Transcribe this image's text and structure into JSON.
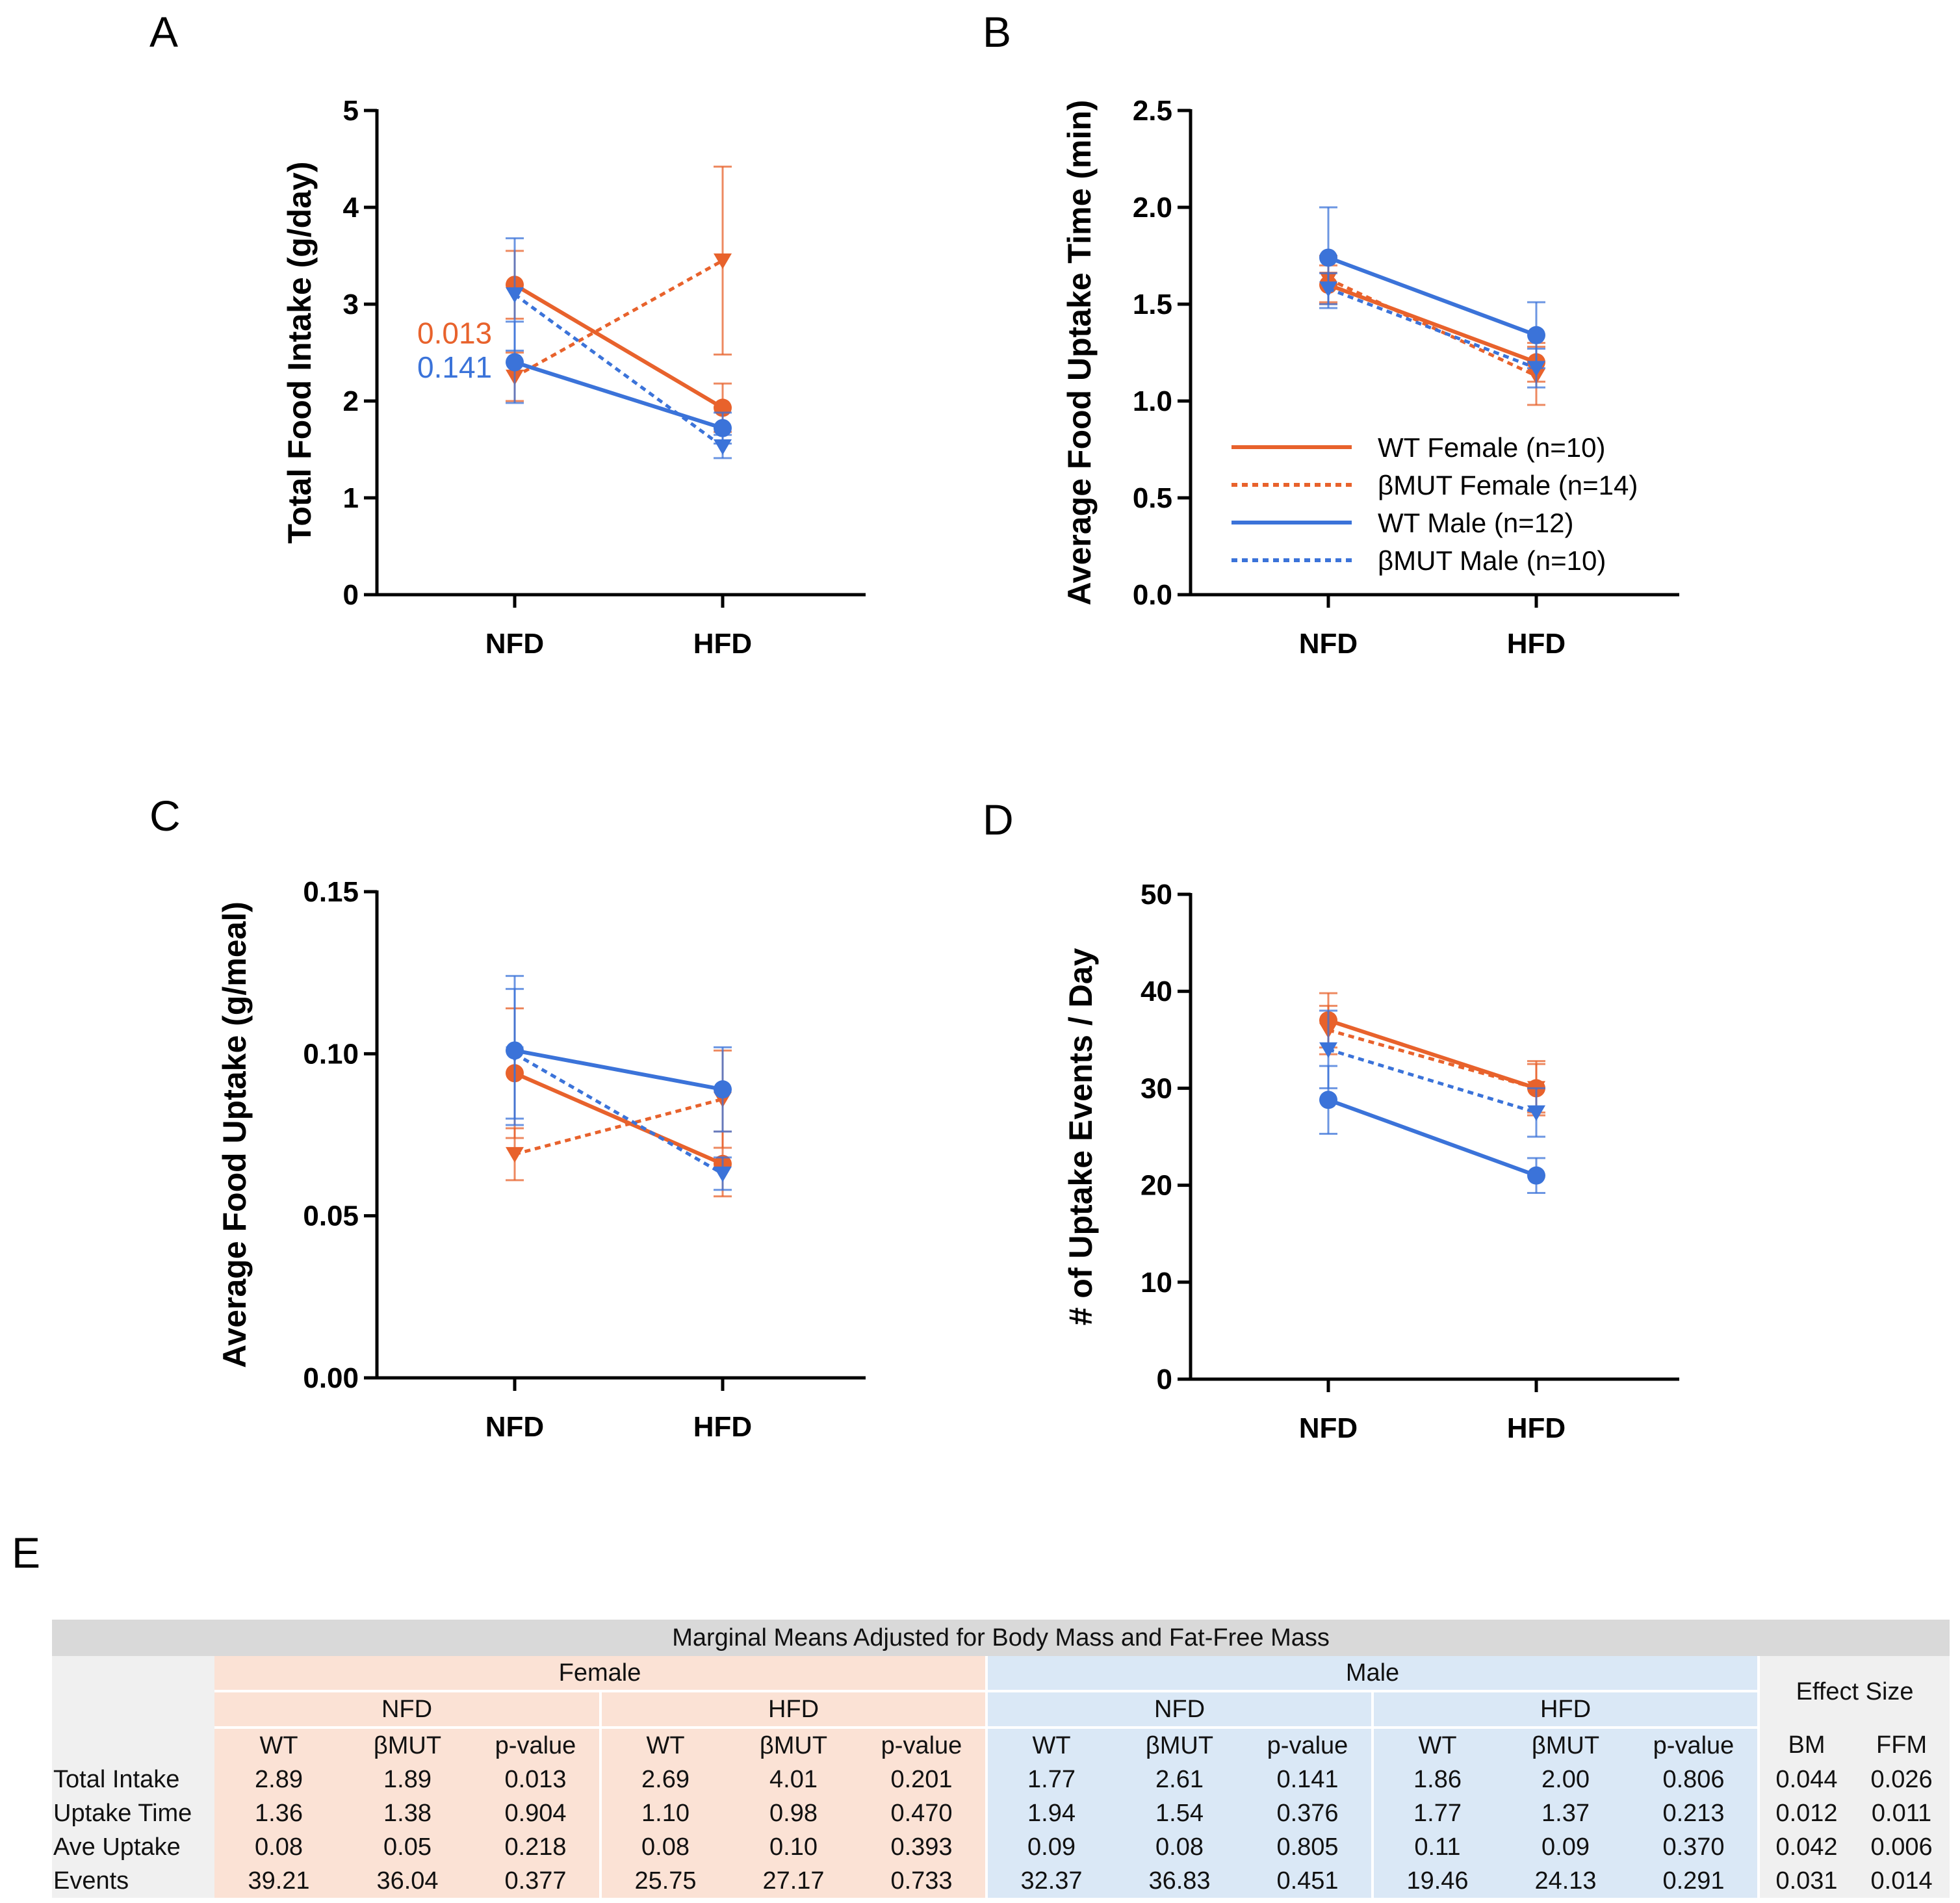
{
  "colors": {
    "female": "#E8622C",
    "male": "#3B73D9"
  },
  "legend": {
    "wt_female": "WT Female  (n=10)",
    "bmut_female": "βMUT  Female  (n=14)",
    "wt_male": "WT Male  (n=12)",
    "bmut_male": "βMUT  Male  (n=10)"
  },
  "chart_data": [
    {
      "panel": "A",
      "type": "line",
      "categories": [
        "NFD",
        "HFD"
      ],
      "ylabel": "Total Food Intake (g/day)",
      "ylim": [
        0,
        5
      ],
      "yticks": [
        "0",
        "1",
        "2",
        "3",
        "4",
        "5"
      ],
      "annotations": [
        {
          "text": "0.013",
          "color": "female"
        },
        {
          "text": "0.141",
          "color": "male"
        }
      ],
      "series": [
        {
          "name": "WT Female",
          "values": [
            3.2,
            1.93
          ],
          "err": [
            0.35,
            0.25
          ]
        },
        {
          "name": "βMUT Female",
          "values": [
            2.25,
            3.45
          ],
          "err": [
            0.25,
            0.97
          ]
        },
        {
          "name": "WT Male",
          "values": [
            2.4,
            1.72
          ],
          "err": [
            0.42,
            0.16
          ]
        },
        {
          "name": "βMUT Male",
          "values": [
            3.1,
            1.53
          ],
          "err": [
            0.58,
            0.12
          ]
        }
      ]
    },
    {
      "panel": "B",
      "type": "line",
      "categories": [
        "NFD",
        "HFD"
      ],
      "ylabel": "Average Food Uptake Time (min)",
      "ylim": [
        0,
        2.5
      ],
      "yticks": [
        "0.0",
        "0.5",
        "1.0",
        "1.5",
        "2.0",
        "2.5"
      ],
      "series": [
        {
          "name": "WT Female",
          "values": [
            1.6,
            1.2
          ],
          "err": [
            0.1,
            0.1
          ]
        },
        {
          "name": "βMUT Female",
          "values": [
            1.63,
            1.13
          ],
          "err": [
            0.12,
            0.15
          ]
        },
        {
          "name": "WT Male",
          "values": [
            1.74,
            1.34
          ],
          "err": [
            0.26,
            0.17
          ]
        },
        {
          "name": "βMUT Male",
          "values": [
            1.58,
            1.17
          ],
          "err": [
            0.08,
            0.1
          ]
        }
      ]
    },
    {
      "panel": "C",
      "type": "line",
      "categories": [
        "NFD",
        "HFD"
      ],
      "ylabel": "Average Food Uptake (g/meal)",
      "ylim": [
        0,
        0.15
      ],
      "yticks": [
        "0.00",
        "0.05",
        "0.10",
        "0.15"
      ],
      "series": [
        {
          "name": "WT Female",
          "values": [
            0.094,
            0.066
          ],
          "err": [
            0.02,
            0.01
          ]
        },
        {
          "name": "βMUT Female",
          "values": [
            0.069,
            0.086
          ],
          "err": [
            0.008,
            0.015
          ]
        },
        {
          "name": "WT Male",
          "values": [
            0.101,
            0.089
          ],
          "err": [
            0.023,
            0.013
          ]
        },
        {
          "name": "βMUT Male",
          "values": [
            0.1,
            0.063
          ],
          "err": [
            0.02,
            0.005
          ]
        }
      ]
    },
    {
      "panel": "D",
      "type": "line",
      "categories": [
        "NFD",
        "HFD"
      ],
      "ylabel": "# of Uptake Events / Day",
      "ylim": [
        0,
        50
      ],
      "yticks": [
        "0",
        "10",
        "20",
        "30",
        "40",
        "50"
      ],
      "series": [
        {
          "name": "WT Female",
          "values": [
            37,
            30
          ],
          "err": [
            2.8,
            2.8
          ]
        },
        {
          "name": "βMUT Female",
          "values": [
            36,
            30
          ],
          "err": [
            2.5,
            2.5
          ]
        },
        {
          "name": "WT Male",
          "values": [
            28.8,
            21
          ],
          "err": [
            3.5,
            1.8
          ]
        },
        {
          "name": "βMUT Male",
          "values": [
            34,
            27.5
          ],
          "err": [
            4,
            2.5
          ]
        }
      ]
    },
    {
      "panel": "E",
      "type": "table",
      "title": "Marginal Means Adjusted for Body Mass and Fat-Free Mass",
      "groups": [
        "Female",
        "Male"
      ],
      "diets": [
        "NFD",
        "HFD",
        "NFD",
        "HFD"
      ],
      "effect_size": "Effect Size",
      "columns": [
        "WT",
        "βMUT",
        "p-value",
        "WT",
        "βMUT",
        "p-value",
        "WT",
        "βMUT",
        "p-value",
        "WT",
        "βMUT",
        "p-value",
        "BM",
        "FFM"
      ],
      "rows": [
        {
          "label": "Total Intake",
          "cells": [
            "2.89",
            "1.89",
            "0.013",
            "2.69",
            "4.01",
            "0.201",
            "1.77",
            "2.61",
            "0.141",
            "1.86",
            "2.00",
            "0.806",
            "0.044",
            "0.026"
          ]
        },
        {
          "label": "Uptake Time",
          "cells": [
            "1.36",
            "1.38",
            "0.904",
            "1.10",
            "0.98",
            "0.470",
            "1.94",
            "1.54",
            "0.376",
            "1.77",
            "1.37",
            "0.213",
            "0.012",
            "0.011"
          ]
        },
        {
          "label": "Ave Uptake",
          "cells": [
            "0.08",
            "0.05",
            "0.218",
            "0.08",
            "0.10",
            "0.393",
            "0.09",
            "0.08",
            "0.805",
            "0.11",
            "0.09",
            "0.370",
            "0.042",
            "0.006"
          ]
        },
        {
          "label": "Events",
          "cells": [
            "39.21",
            "36.04",
            "0.377",
            "25.75",
            "27.17",
            "0.733",
            "32.37",
            "36.83",
            "0.451",
            "19.46",
            "24.13",
            "0.291",
            "0.031",
            "0.014"
          ]
        }
      ]
    }
  ]
}
